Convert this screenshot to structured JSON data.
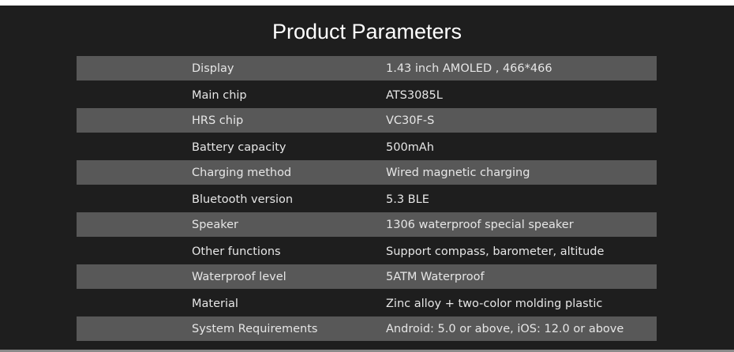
{
  "title": "Product Parameters",
  "colors": {
    "background": "#1e1e1e",
    "stripe": "#585858",
    "text": "#e6e6e6"
  },
  "rows": [
    {
      "label": "Display",
      "value": "1.43 inch AMOLED , 466*466"
    },
    {
      "label": "Main chip",
      "value": "ATS3085L"
    },
    {
      "label": "HRS  chip",
      "value": "VC30F-S"
    },
    {
      "label": "Battery capacity",
      "value": "500mAh"
    },
    {
      "label": "Charging method",
      "value": "Wired magnetic charging"
    },
    {
      "label": "Bluetooth version",
      "value": "5.3 BLE"
    },
    {
      "label": "Speaker",
      "value": "1306 waterproof special speaker"
    },
    {
      "label": "Other functions",
      "value": "Support compass, barometer, altitude"
    },
    {
      "label": "Waterproof level",
      "value": "5ATM Waterproof"
    },
    {
      "label": "Material",
      "value": "Zinc alloy + two-color molding plastic"
    },
    {
      "label": "System Requirements",
      "value": "Android: 5.0 or above, iOS: 12.0 or above"
    }
  ]
}
